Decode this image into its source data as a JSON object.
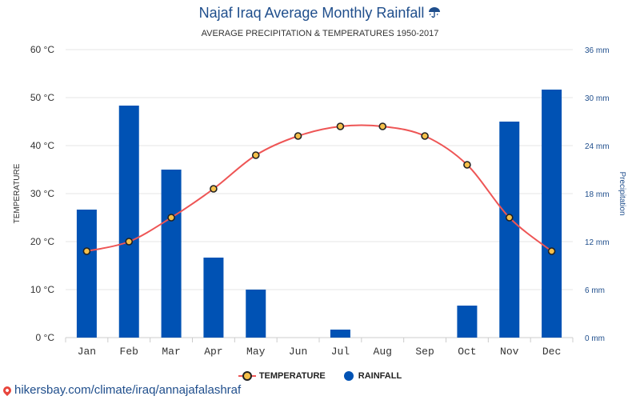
{
  "title": "Najaf Iraq Average Monthly Rainfall",
  "title_icon": "umbrella-rain-icon",
  "subtitle": "AVERAGE PRECIPITATION & TEMPERATURES 1950-2017",
  "legend": {
    "temperature_label": "TEMPERATURE",
    "rainfall_label": "RAINFALL"
  },
  "footer_url": "hikersbay.com/climate/iraq/annajafalashraf",
  "colors": {
    "bar": "#0052b4",
    "line": "#ee5555",
    "marker_fill": "#f5c04a",
    "marker_stroke": "#222222",
    "grid": "#e6e6e6",
    "right_axis": "#1f4e8c"
  },
  "chart_data": {
    "type": "bar",
    "title": "Najaf Iraq Average Monthly Rainfall",
    "subtitle": "AVERAGE PRECIPITATION & TEMPERATURES 1950-2017",
    "categories": [
      "Jan",
      "Feb",
      "Mar",
      "Apr",
      "May",
      "Jun",
      "Jul",
      "Aug",
      "Sep",
      "Oct",
      "Nov",
      "Dec"
    ],
    "ylabel": "TEMPERATURE",
    "ylabel_right": "Precipitation",
    "ylim": [
      0,
      60
    ],
    "ylim_right": [
      0,
      36
    ],
    "yticks": [
      "0 °C",
      "10 °C",
      "20 °C",
      "30 °C",
      "40 °C",
      "50 °C",
      "60 °C"
    ],
    "yticks_right": [
      "0 mm",
      "6 mm",
      "12 mm",
      "18 mm",
      "24 mm",
      "30 mm",
      "36 mm"
    ],
    "grid": true,
    "legend_position": "bottom",
    "series": [
      {
        "name": "RAINFALL",
        "type": "bar",
        "axis": "right",
        "values": [
          16,
          29,
          21,
          10,
          6,
          0,
          1,
          0,
          0,
          4,
          27,
          31
        ]
      },
      {
        "name": "TEMPERATURE",
        "type": "line",
        "axis": "left",
        "values": [
          18,
          20,
          25,
          31,
          38,
          42,
          44,
          44,
          42,
          36,
          25,
          18
        ]
      }
    ]
  }
}
